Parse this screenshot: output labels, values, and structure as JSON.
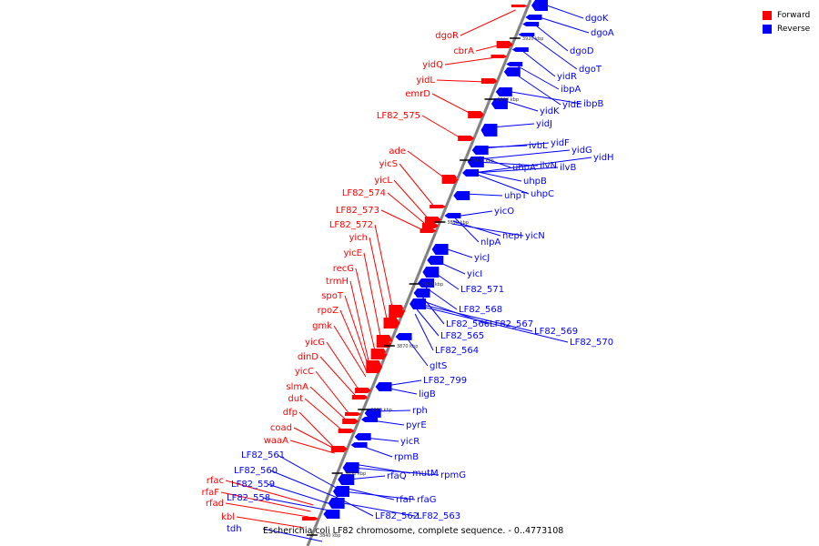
{
  "colors": {
    "forward": "#ff0000",
    "reverse": "#0000ff",
    "axis": "#808080",
    "tick": "#000000"
  },
  "legend": [
    {
      "label": "Forward",
      "color": "#ff0000"
    },
    {
      "label": "Reverse",
      "color": "#0000ff"
    }
  ],
  "caption": "Escherichia coli LF82 chromosome, complete sequence. - 0..4773108",
  "scale_labels": [
    "3920 kbp",
    "3910 kbp",
    "3900 kbp",
    "3890 kbp",
    "3880 kbp",
    "3870 kbp",
    "3860 kbp",
    "3850 kbp",
    "3840 kbp"
  ],
  "forward_genes": [
    "dgoR",
    "cbrA",
    "yidQ",
    "yidL",
    "emrD",
    "LF82_575",
    "ade",
    "yicS",
    "yicL",
    "LF82_574",
    "LF82_573",
    "LF82_572",
    "yich",
    "yicE",
    "recG",
    "trmH",
    "spoT",
    "rpoZ",
    "gmk",
    "yicG",
    "dinD",
    "yicC",
    "slmA",
    "dut",
    "dfp",
    "coad",
    "waaA",
    "rfac",
    "rfaF",
    "rfad",
    "kbl"
  ],
  "reverse_genes": [
    "dgoK",
    "dgoA",
    "dgoD",
    "dgoT",
    "yidR",
    "ibpA",
    "yidE",
    "ibpB",
    "yidK",
    "yidJ",
    "yidF",
    "yidG",
    "yidH",
    "ivbL",
    "ilvN",
    "ilvB",
    "uhpA",
    "uhpB",
    "uhpC",
    "uhpT",
    "yicO",
    "nepI",
    "yicN",
    "nlpA",
    "yicJ",
    "yicI",
    "LF82_571",
    "LF82_568",
    "LF82_566",
    "LF82_567",
    "LF82_569",
    "LF82_570",
    "LF82_565",
    "LF82_564",
    "gltS",
    "LF82_799",
    "ligB",
    "rph",
    "pyrE",
    "yicR",
    "rpmB",
    "mutM",
    "rpmG",
    "rfaQ",
    "rfaP",
    "rfaG",
    "LF82_562",
    "LF82_563",
    "LF82_561",
    "LF82_560",
    "LF82_559",
    "LF82_558",
    "tdh"
  ]
}
